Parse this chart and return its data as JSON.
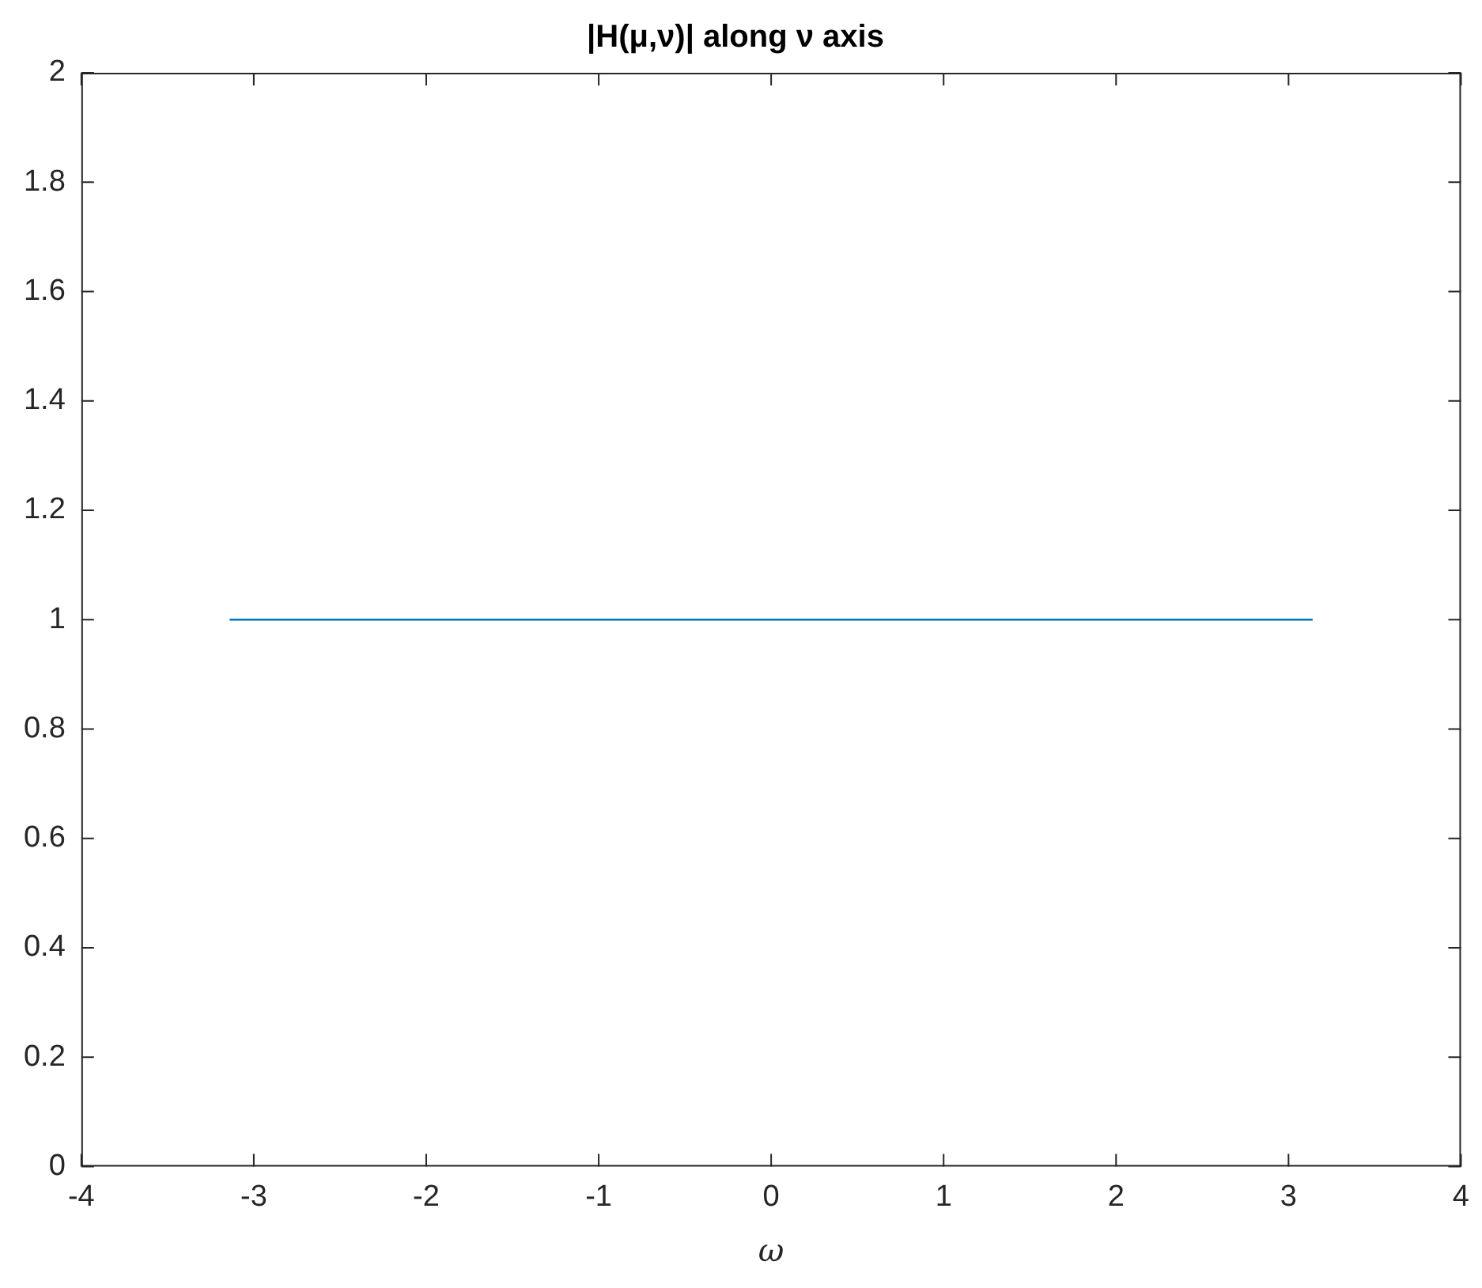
{
  "chart_data": {
    "type": "line",
    "title": "|H(μ,ν)| along ν axis",
    "xlabel": "ω",
    "x": [
      -3.14,
      3.14
    ],
    "series": [
      {
        "color": "#0072bd",
        "values": [
          1,
          1
        ]
      }
    ],
    "xlim": [
      -4,
      4
    ],
    "xticks": [
      -4,
      -3,
      -2,
      -1,
      0,
      1,
      2,
      3,
      4
    ],
    "ylim": [
      0,
      2
    ],
    "yticks": [
      0,
      0.2,
      0.4,
      0.6,
      0.8,
      1,
      1.2,
      1.4,
      1.6,
      1.8,
      2
    ],
    "grid": false,
    "legend": false
  }
}
